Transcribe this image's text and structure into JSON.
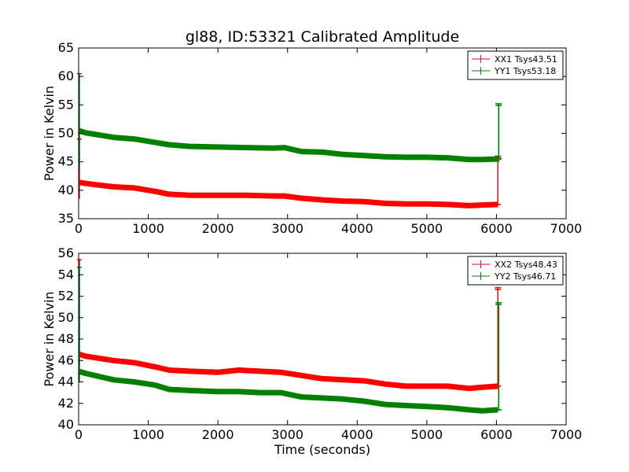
{
  "chart_data": [
    {
      "type": "line",
      "title": "gl88, ID:53321 Calibrated Amplitude",
      "xlabel": "",
      "ylabel": "Power in Kelvin",
      "xlim": [
        0,
        7000
      ],
      "ylim": [
        35,
        65
      ],
      "xticks": [
        0,
        1000,
        2000,
        3000,
        4000,
        5000,
        6000,
        7000
      ],
      "yticks": [
        35,
        40,
        45,
        50,
        55,
        60,
        65
      ],
      "legend_position": "top-right",
      "series": [
        {
          "name": "XX1 Tsys43.51",
          "color": "#ff0000",
          "x": [
            0,
            100,
            500,
            800,
            1100,
            1300,
            1600,
            2000,
            2400,
            2800,
            2950,
            3200,
            3500,
            3800,
            4100,
            4400,
            4700,
            5000,
            5300,
            5600,
            5800,
            6020
          ],
          "y": [
            41.4,
            41.2,
            40.6,
            40.4,
            39.8,
            39.3,
            39.1,
            39.1,
            39.1,
            39.0,
            39.0,
            38.6,
            38.3,
            38.1,
            38.0,
            37.7,
            37.6,
            37.6,
            37.5,
            37.3,
            37.4,
            37.5
          ],
          "start_spike": [
            38.5,
            49.0
          ],
          "end_spike": [
            37.3,
            46.0
          ]
        },
        {
          "name": "YY1 Tsys53.18",
          "color": "#008000",
          "x": [
            0,
            100,
            500,
            800,
            1100,
            1300,
            1600,
            2000,
            2400,
            2800,
            2950,
            3200,
            3500,
            3800,
            4100,
            4400,
            4700,
            5000,
            5300,
            5600,
            5800,
            6020
          ],
          "y": [
            50.5,
            50.1,
            49.3,
            49.0,
            48.4,
            48.0,
            47.7,
            47.6,
            47.5,
            47.4,
            47.5,
            46.8,
            46.7,
            46.3,
            46.1,
            45.9,
            45.8,
            45.8,
            45.7,
            45.4,
            45.4,
            45.5
          ],
          "start_spike": [
            44.0,
            60.5
          ],
          "end_spike": [
            45.0,
            55.2
          ]
        }
      ]
    },
    {
      "type": "line",
      "title": "",
      "xlabel": "Time (seconds)",
      "ylabel": "Power in Kelvin",
      "xlim": [
        0,
        7000
      ],
      "ylim": [
        40,
        56
      ],
      "xticks": [
        0,
        1000,
        2000,
        3000,
        4000,
        5000,
        6000,
        7000
      ],
      "yticks": [
        40,
        42,
        44,
        46,
        48,
        50,
        52,
        54,
        56
      ],
      "legend_position": "top-right",
      "series": [
        {
          "name": "XX2 Tsys48.43",
          "color": "#ff0000",
          "x": [
            0,
            100,
            500,
            800,
            1100,
            1300,
            1600,
            2000,
            2300,
            2600,
            2900,
            3200,
            3500,
            3800,
            4100,
            4400,
            4700,
            5000,
            5300,
            5600,
            5800,
            6020
          ],
          "y": [
            46.6,
            46.4,
            46.0,
            45.8,
            45.4,
            45.1,
            45.0,
            44.9,
            45.1,
            45.0,
            44.9,
            44.6,
            44.3,
            44.2,
            44.1,
            43.8,
            43.6,
            43.6,
            43.6,
            43.4,
            43.5,
            43.6
          ],
          "start_spike": [
            45.5,
            55.4
          ],
          "end_spike": [
            43.5,
            52.8
          ]
        },
        {
          "name": "YY2 Tsys46.71",
          "color": "#008000",
          "x": [
            0,
            100,
            500,
            800,
            1100,
            1300,
            1600,
            2000,
            2300,
            2600,
            2900,
            3200,
            3500,
            3800,
            4100,
            4400,
            4700,
            5000,
            5300,
            5600,
            5800,
            6020
          ],
          "y": [
            45.0,
            44.8,
            44.2,
            44.0,
            43.7,
            43.3,
            43.2,
            43.1,
            43.1,
            43.0,
            43.0,
            42.6,
            42.5,
            42.4,
            42.2,
            41.9,
            41.8,
            41.7,
            41.6,
            41.4,
            41.3,
            41.4
          ],
          "start_spike": [
            44.0,
            54.7
          ],
          "end_spike": [
            41.3,
            51.4
          ]
        }
      ]
    }
  ]
}
